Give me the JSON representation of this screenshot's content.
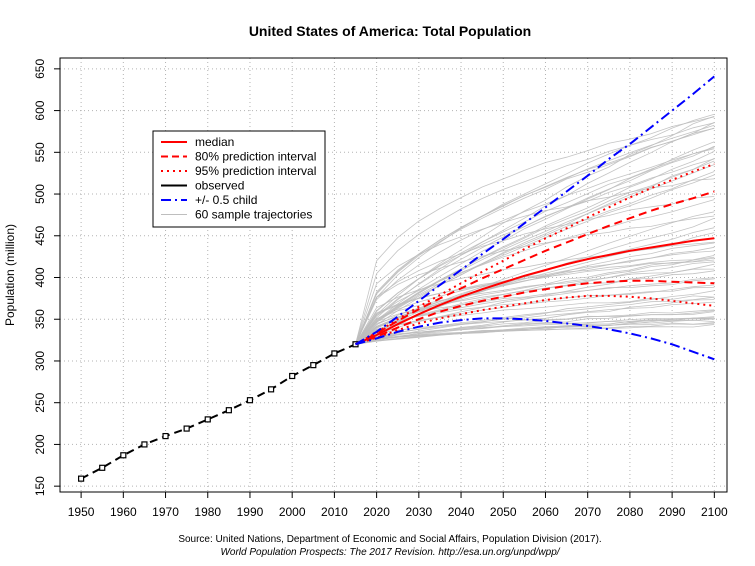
{
  "chart_data": {
    "type": "line",
    "title": "United States of America: Total Population",
    "xlabel": "",
    "ylabel": "Population (million)",
    "xlim": [
      1945,
      2103
    ],
    "ylim": [
      143,
      663
    ],
    "xticks": [
      1950,
      1960,
      1970,
      1980,
      1990,
      2000,
      2010,
      2020,
      2030,
      2040,
      2050,
      2060,
      2070,
      2080,
      2090,
      2100
    ],
    "yticks": [
      150,
      200,
      250,
      300,
      350,
      400,
      450,
      500,
      550,
      600,
      650
    ],
    "grid": true,
    "legend_position": "top-left",
    "source_line1": "Source: United Nations, Department of Economic and Social Affairs, Population Division (2017).",
    "source_line2": "World Population Prospects: The 2017 Revision. http://esa.un.org/unpd/wpp/",
    "legend": [
      {
        "label": "median",
        "color": "#ff0000",
        "style": "solid",
        "width": 2
      },
      {
        "label": "80% prediction interval",
        "color": "#ff0000",
        "style": "dashed",
        "width": 2
      },
      {
        "label": "95% prediction interval",
        "color": "#ff0000",
        "style": "dotted",
        "width": 2
      },
      {
        "label": "observed",
        "color": "#000000",
        "style": "solid",
        "width": 2
      },
      {
        "label": "+/- 0.5 child",
        "color": "#0000ff",
        "style": "dashdot",
        "width": 2
      },
      {
        "label": "60 sample trajectories",
        "color": "#bebebe",
        "style": "solid",
        "width": 1
      }
    ],
    "series": [
      {
        "name": "observed",
        "color": "#000000",
        "style": "dashed-points",
        "x": [
          1950,
          1955,
          1960,
          1965,
          1970,
          1975,
          1980,
          1985,
          1990,
          1995,
          2000,
          2005,
          2010,
          2015
        ],
        "y": [
          159,
          172,
          187,
          200,
          210,
          219,
          230,
          241,
          253,
          266,
          282,
          295,
          309,
          320
        ]
      },
      {
        "name": "median",
        "color": "#ff0000",
        "style": "solid",
        "x": [
          2015,
          2020,
          2025,
          2030,
          2035,
          2040,
          2045,
          2050,
          2055,
          2060,
          2065,
          2070,
          2075,
          2080,
          2085,
          2090,
          2095,
          2100
        ],
        "y": [
          320,
          331,
          344,
          356,
          367,
          377,
          386,
          394,
          402,
          409,
          416,
          422,
          427,
          432,
          436,
          440,
          444,
          447
        ]
      },
      {
        "name": "80% upper",
        "color": "#ff0000",
        "style": "dashed",
        "x": [
          2015,
          2020,
          2025,
          2030,
          2035,
          2040,
          2045,
          2050,
          2055,
          2060,
          2065,
          2070,
          2075,
          2080,
          2085,
          2090,
          2095,
          2100
        ],
        "y": [
          320,
          333,
          348,
          362,
          375,
          387,
          399,
          410,
          421,
          432,
          442,
          452,
          462,
          471,
          480,
          488,
          495,
          503
        ]
      },
      {
        "name": "80% lower",
        "color": "#ff0000",
        "style": "dashed",
        "x": [
          2015,
          2020,
          2025,
          2030,
          2035,
          2040,
          2045,
          2050,
          2055,
          2060,
          2065,
          2070,
          2075,
          2080,
          2085,
          2090,
          2095,
          2100
        ],
        "y": [
          320,
          329,
          340,
          350,
          359,
          366,
          372,
          377,
          382,
          386,
          390,
          393,
          395,
          396,
          396,
          395,
          394,
          393
        ]
      },
      {
        "name": "95% upper",
        "color": "#ff0000",
        "style": "dotted",
        "x": [
          2015,
          2020,
          2025,
          2030,
          2035,
          2040,
          2045,
          2050,
          2055,
          2060,
          2065,
          2070,
          2075,
          2080,
          2085,
          2090,
          2095,
          2100
        ],
        "y": [
          320,
          334,
          350,
          365,
          379,
          393,
          407,
          420,
          434,
          447,
          459,
          472,
          484,
          496,
          507,
          517,
          527,
          536
        ]
      },
      {
        "name": "95% lower",
        "color": "#ff0000",
        "style": "dotted",
        "x": [
          2015,
          2020,
          2025,
          2030,
          2035,
          2040,
          2045,
          2050,
          2055,
          2060,
          2065,
          2070,
          2075,
          2080,
          2085,
          2090,
          2095,
          2100
        ],
        "y": [
          320,
          328,
          337,
          345,
          351,
          356,
          361,
          365,
          369,
          373,
          376,
          378,
          378,
          377,
          375,
          372,
          369,
          366
        ]
      },
      {
        "name": "+0.5 child",
        "color": "#0000ff",
        "style": "dashdot",
        "x": [
          2015,
          2020,
          2025,
          2030,
          2035,
          2040,
          2045,
          2050,
          2055,
          2060,
          2065,
          2070,
          2075,
          2080,
          2085,
          2090,
          2095,
          2100
        ],
        "y": [
          320,
          335,
          353,
          372,
          391,
          409,
          428,
          446,
          465,
          484,
          503,
          522,
          542,
          560,
          580,
          600,
          620,
          641
        ]
      },
      {
        "name": "-0.5 child",
        "color": "#0000ff",
        "style": "dashdot",
        "x": [
          2015,
          2020,
          2025,
          2030,
          2035,
          2040,
          2045,
          2050,
          2055,
          2060,
          2065,
          2070,
          2075,
          2080,
          2085,
          2090,
          2095,
          2100
        ],
        "y": [
          320,
          327,
          335,
          341,
          346,
          349,
          351,
          351,
          350,
          348,
          345,
          342,
          338,
          333,
          327,
          320,
          311,
          302
        ]
      }
    ],
    "sample_trajectories": {
      "count": 60,
      "color": "#bebebe",
      "x_start": 2015,
      "x_end": 2100,
      "y_start": 320,
      "y_end_min": 342,
      "y_end_max": 600
    }
  }
}
